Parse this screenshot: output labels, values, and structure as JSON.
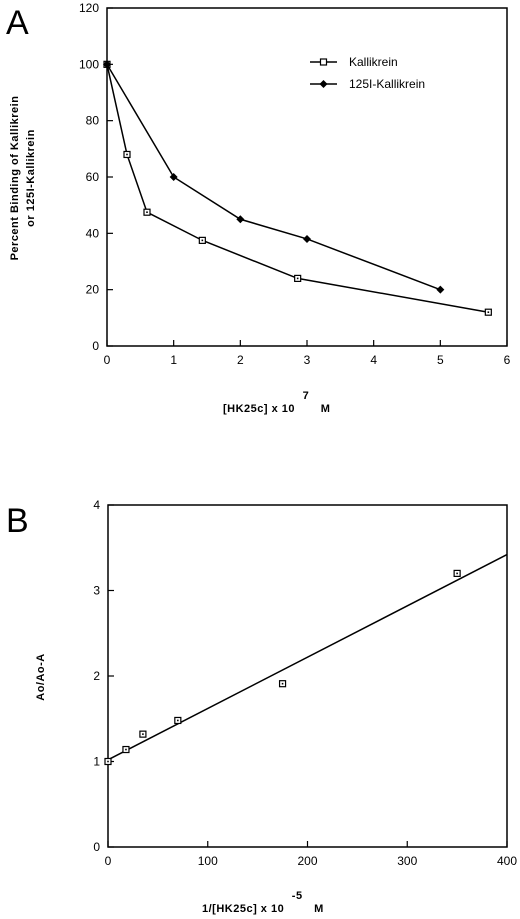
{
  "chart_data": [
    {
      "panel": "A",
      "type": "line",
      "xlabel": "[HK25c]  x  10",
      "xlabel_exponent": "7",
      "xlabel_unit": "M",
      "ylabel_line1": "Percent  Binding  of  Kallikrein",
      "ylabel_line2": "or  125I-Kallikrein",
      "xlim": [
        0,
        6
      ],
      "ylim": [
        0,
        120
      ],
      "xticks": [
        "0",
        "1",
        "2",
        "3",
        "4",
        "5",
        "6"
      ],
      "yticks": [
        "0",
        "20",
        "40",
        "60",
        "80",
        "100",
        "120"
      ],
      "legend_position": "top-right",
      "grid": false,
      "series": [
        {
          "name": "Kallikrein",
          "marker": "open-square",
          "x": [
            0,
            0.3,
            0.6,
            1.43,
            2.86,
            5.72
          ],
          "y": [
            100,
            68,
            47.5,
            37.5,
            24,
            12
          ]
        },
        {
          "name": "125I-Kallikrein",
          "marker": "filled-diamond",
          "x": [
            0,
            1,
            2,
            3,
            5
          ],
          "y": [
            100,
            60,
            45,
            38,
            20
          ]
        }
      ]
    },
    {
      "panel": "B",
      "type": "scatter",
      "xlabel": "1/[HK25c]  x  10",
      "xlabel_exponent": "-5",
      "xlabel_unit": "M",
      "ylabel": "Ao/Ao-A",
      "xlim": [
        0,
        400
      ],
      "ylim": [
        0,
        4
      ],
      "xticks": [
        "0",
        "100",
        "200",
        "300",
        "400"
      ],
      "yticks": [
        "0",
        "1",
        "2",
        "3",
        "4"
      ],
      "grid": false,
      "series": [
        {
          "marker": "open-square",
          "x": [
            0,
            18,
            35,
            70,
            175,
            350
          ],
          "y": [
            1.0,
            1.14,
            1.32,
            1.48,
            1.91,
            3.2
          ]
        }
      ],
      "fit_line": {
        "x": [
          0,
          400
        ],
        "y": [
          1.02,
          3.42
        ]
      }
    }
  ]
}
